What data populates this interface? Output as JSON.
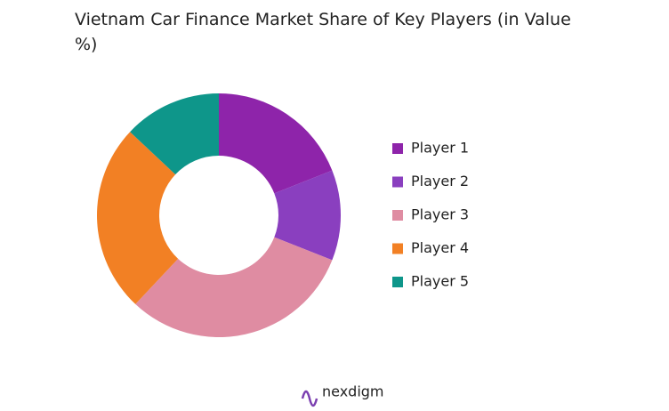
{
  "chart_data": {
    "type": "pie",
    "title": "Vietnam Car Finance Market Share of Key Players (in Value %)",
    "categories": [
      "Player 1",
      "Player 2",
      "Player 3",
      "Player 4",
      "Player 5"
    ],
    "values": [
      19,
      12,
      31,
      25,
      13
    ],
    "colors": [
      "#8e24aa",
      "#8a3fbf",
      "#df8ca2",
      "#f28024",
      "#0e968a"
    ],
    "donut": true,
    "legend": "right",
    "watermark": "nexdigm"
  }
}
